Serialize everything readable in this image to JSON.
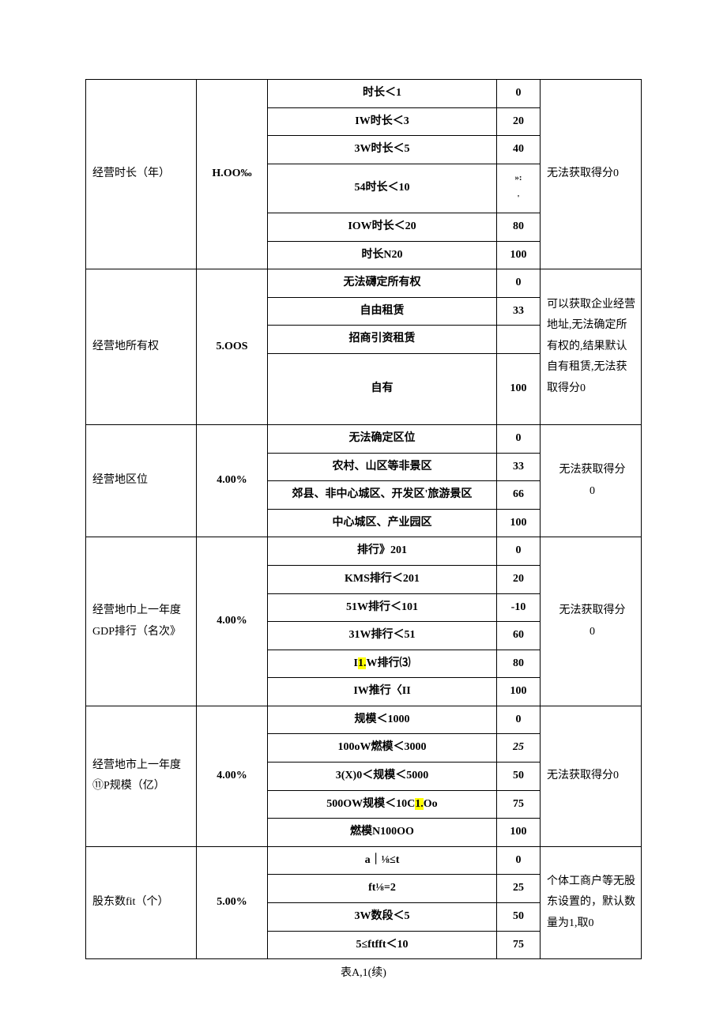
{
  "caption": "表A,1(续)",
  "rows": [
    {
      "name": "经营时长（年）",
      "weight": "H.OO‰",
      "note": "无法获取得分0",
      "note_align": "left",
      "ranges": [
        {
          "label": "时长＜1",
          "score": "0"
        },
        {
          "label": "IW时长＜3",
          "score": "20"
        },
        {
          "label": "3W时长＜5",
          "score": "40"
        },
        {
          "label": "54时长＜10",
          "score": "»:\n'",
          "score_small": true
        },
        {
          "label": "IOW时长＜20",
          "score": "80"
        },
        {
          "label": "时长N20",
          "score": "100"
        }
      ]
    },
    {
      "name": "经营地所有权",
      "weight": "5.OOS",
      "note": "可以获取企业经营地址,无法确定所有权的,结果默认自有租赁,无法获取得分0",
      "note_align": "left",
      "ranges": [
        {
          "label": "无法礴定所有权",
          "score": "0"
        },
        {
          "label": "自由租赁",
          "score": "33"
        },
        {
          "label": "招商引资租赁",
          "score": ""
        },
        {
          "label": "自有",
          "score": "100",
          "tall": true
        }
      ]
    },
    {
      "name": "经营地区位",
      "weight": "4.00%",
      "note": "无法获取得分\n0",
      "note_align": "center",
      "ranges": [
        {
          "label": "无法确定区位",
          "score": "0"
        },
        {
          "label": "农村、山区等非景区",
          "score": "33"
        },
        {
          "label": "郊县、非中心城区、开发区'旅游景区",
          "score": "66"
        },
        {
          "label": "中心城区、产业园区",
          "score": "100"
        }
      ]
    },
    {
      "name": "经营地巾上一年度GDP排行（名次》",
      "weight": "4.00%",
      "note": "无法获取得分\n0",
      "note_align": "center",
      "ranges": [
        {
          "label": "排行》201",
          "score": "0"
        },
        {
          "label": "KMS排行＜201",
          "score": "20"
        },
        {
          "label": "51W排行＜101",
          "score": "-10"
        },
        {
          "label": "31W排行＜51",
          "score": "60"
        },
        {
          "label_parts": [
            "I",
            "1.",
            "W排行⑶"
          ],
          "hl_index": 1,
          "score": "80"
        },
        {
          "label": "IW推行〈II",
          "score": "100"
        }
      ]
    },
    {
      "name": "经营地市上一年度⑪P规模（亿）",
      "weight": "4.00%",
      "note": "无法获取得分0",
      "note_align": "left",
      "ranges": [
        {
          "label": "规模＜1000",
          "score": "0"
        },
        {
          "label": "100oW燃模＜3000",
          "score": "25",
          "score_italic": true
        },
        {
          "label": "3(X)0＜规模＜5000",
          "score": "50"
        },
        {
          "label_parts": [
            "500OW规模＜10C",
            "1.",
            "Oo"
          ],
          "hl_index": 1,
          "score": "75"
        },
        {
          "label": "燃模N100OO",
          "score": "100"
        }
      ]
    },
    {
      "name": "股东数fit（个）",
      "weight": "5.00%",
      "note": "个体工商户等无股东设置的，默认数量为1,取0",
      "note_align": "left",
      "ranges": [
        {
          "label": "a｜⅛≤t",
          "score": "0"
        },
        {
          "label": "ft⅛=2",
          "score": "25"
        },
        {
          "label": "3W数段＜5",
          "score": "50"
        },
        {
          "label": "5≤ftfft＜10",
          "score": "75"
        }
      ]
    }
  ]
}
